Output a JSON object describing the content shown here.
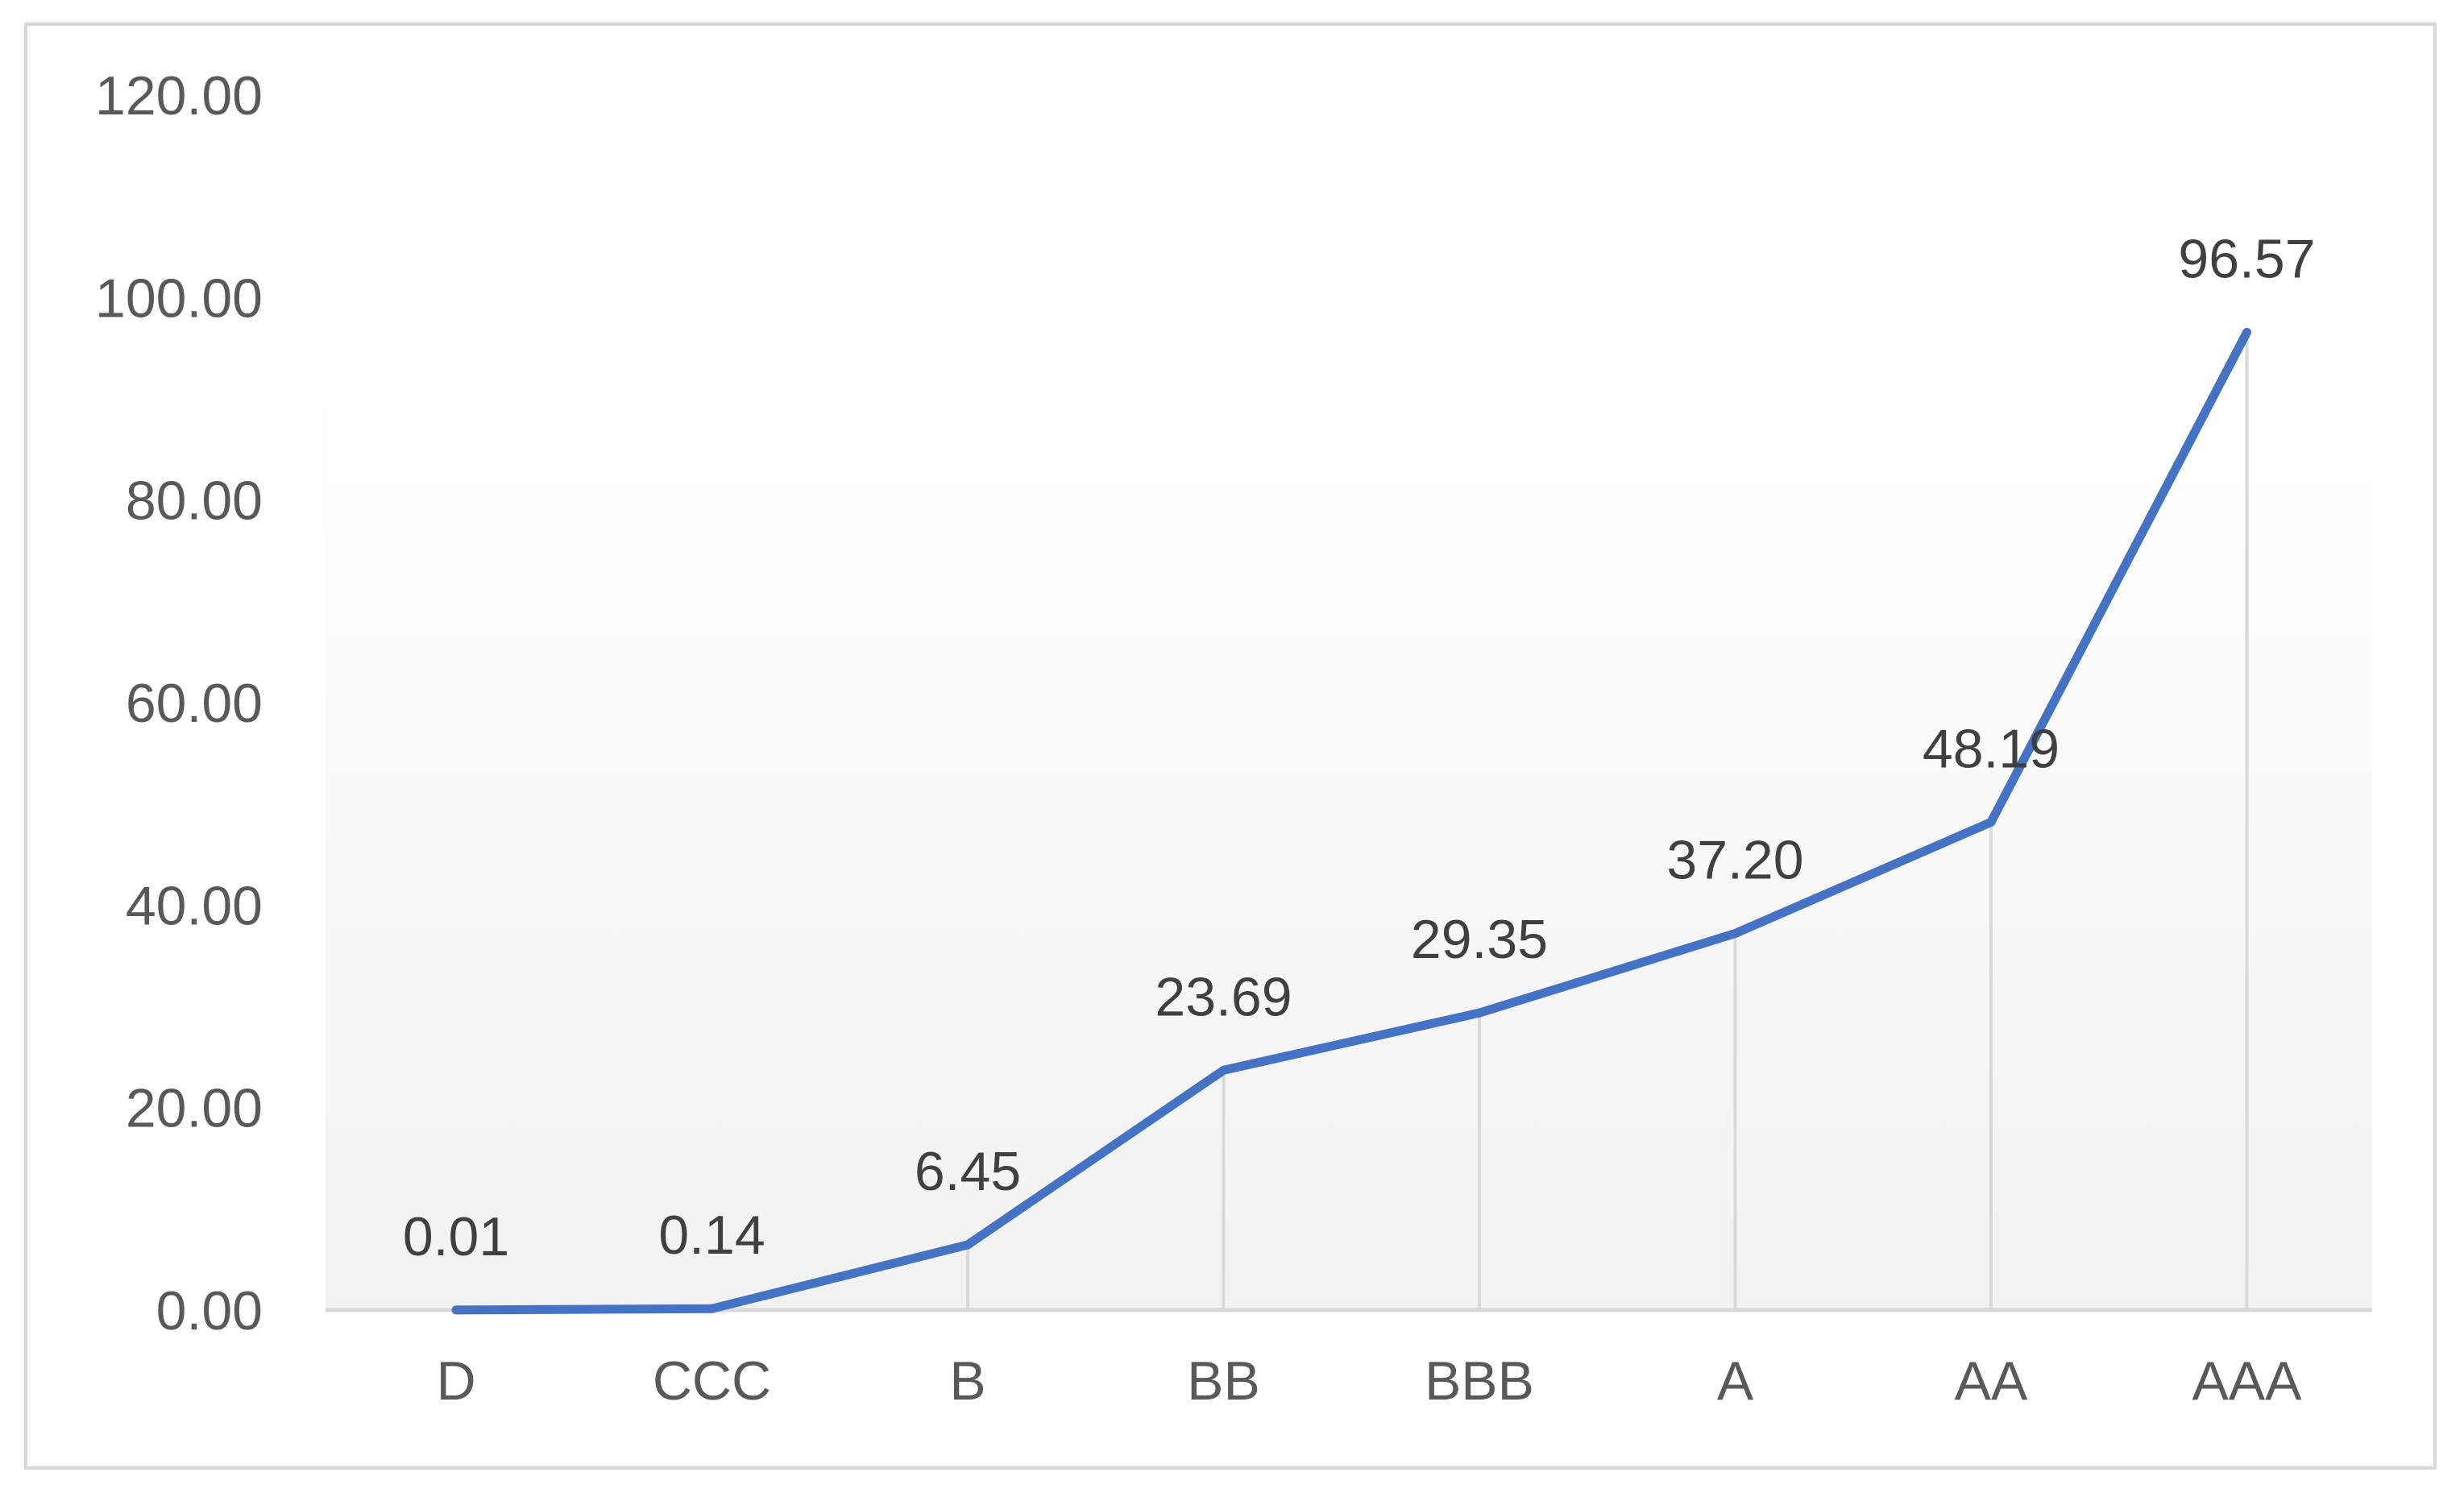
{
  "chart_data": {
    "type": "line",
    "categories": [
      "D",
      "CCC",
      "B",
      "BB",
      "BBB",
      "A",
      "AA",
      "AAA"
    ],
    "values": [
      0.01,
      0.14,
      6.45,
      23.69,
      29.35,
      37.2,
      48.19,
      96.57
    ],
    "value_labels": [
      "0.01",
      "0.14",
      "6.45",
      "23.69",
      "29.35",
      "37.20",
      "48.19",
      "96.57"
    ],
    "y_ticks": [
      "0.00",
      "20.00",
      "40.00",
      "60.00",
      "80.00",
      "100.00",
      "120.00"
    ],
    "ylim": [
      0,
      120
    ],
    "y_tick_step": 20,
    "title": "",
    "xlabel": "",
    "ylabel": "",
    "grid": "vertical drop lines",
    "legend": "none",
    "colors": {
      "line": "#4472c4",
      "axis": "#d9d9d9",
      "drop_line": "#d9d9d9",
      "frame": "#d9d9d9",
      "tick_text": "#595959",
      "label_text": "#404040",
      "plot_gradient_top": "#ffffff",
      "plot_gradient_bottom": "#f2f2f2"
    }
  }
}
